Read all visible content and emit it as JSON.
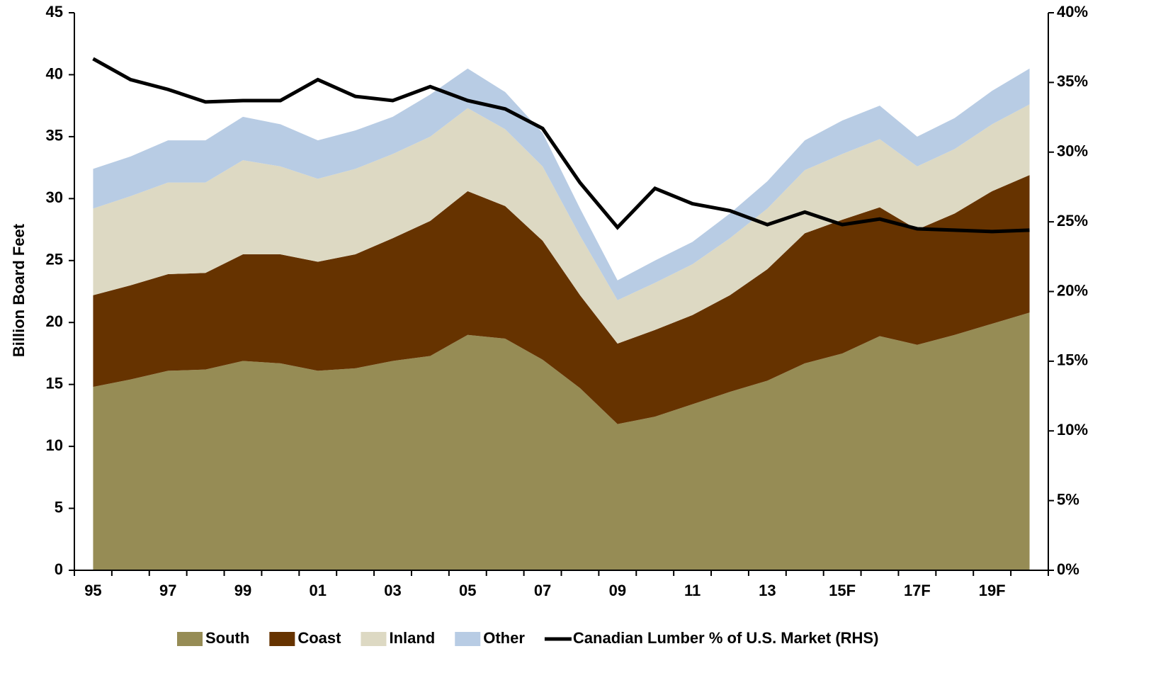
{
  "chart_data": {
    "type": "area",
    "y_label": "Billion Board Feet",
    "categories": [
      "95",
      null,
      "97",
      null,
      "99",
      null,
      "01",
      null,
      "03",
      null,
      "05",
      null,
      "07",
      null,
      "09",
      null,
      "11",
      null,
      "13",
      null,
      "15F",
      null,
      "17F",
      null,
      "19F",
      null
    ],
    "series": [
      {
        "name": "South",
        "color": "#968c55",
        "values": [
          14.8,
          15.4,
          16.1,
          16.2,
          16.9,
          16.7,
          16.1,
          16.3,
          16.9,
          17.3,
          19.0,
          18.7,
          17.0,
          14.7,
          11.8,
          12.4,
          13.4,
          14.4,
          15.3,
          16.7,
          17.5,
          18.9,
          18.2,
          19.0,
          19.9,
          20.8
        ]
      },
      {
        "name": "Coast",
        "color": "#663300",
        "values": [
          7.4,
          7.6,
          7.8,
          7.8,
          8.6,
          8.8,
          8.8,
          9.2,
          9.9,
          10.9,
          11.6,
          10.7,
          9.6,
          7.5,
          6.5,
          7.0,
          7.2,
          7.8,
          9.0,
          10.5,
          10.8,
          10.4,
          9.3,
          9.8,
          10.7,
          11.1
        ]
      },
      {
        "name": "Inland",
        "color": "#ddd9c3",
        "values": [
          7.0,
          7.2,
          7.4,
          7.3,
          7.6,
          7.1,
          6.7,
          6.9,
          6.8,
          6.8,
          6.7,
          6.2,
          6.0,
          4.8,
          3.5,
          3.8,
          4.1,
          4.6,
          4.9,
          5.1,
          5.3,
          5.5,
          5.1,
          5.2,
          5.4,
          5.7
        ]
      },
      {
        "name": "Other",
        "color": "#b8cce4",
        "values": [
          3.2,
          3.2,
          3.4,
          3.4,
          3.5,
          3.4,
          3.1,
          3.1,
          3.0,
          3.4,
          3.2,
          3.0,
          2.7,
          2.2,
          1.6,
          1.8,
          1.8,
          2.0,
          2.2,
          2.4,
          2.7,
          2.7,
          2.4,
          2.5,
          2.7,
          2.9
        ]
      },
      {
        "name": "Canadian Lumber % of U.S. Market (RHS)",
        "type": "line",
        "axis": "y2",
        "color": "#000000",
        "values": [
          36.7,
          35.2,
          34.5,
          33.6,
          33.7,
          33.7,
          35.2,
          34.0,
          33.7,
          34.7,
          33.7,
          33.1,
          31.7,
          27.8,
          24.6,
          27.4,
          26.3,
          25.8,
          24.8,
          25.7,
          24.8,
          25.2,
          24.5,
          24.4,
          24.3,
          24.4
        ]
      }
    ],
    "ylim": [
      0,
      45
    ],
    "yticks": [
      0,
      5,
      10,
      15,
      20,
      25,
      30,
      35,
      40,
      45
    ],
    "y2lim": [
      0,
      40
    ],
    "y2ticks": [
      {
        "value": 0,
        "label": "0%"
      },
      {
        "value": 5,
        "label": "5%"
      },
      {
        "value": 10,
        "label": "10%"
      },
      {
        "value": 15,
        "label": "15%"
      },
      {
        "value": 20,
        "label": "20%"
      },
      {
        "value": 25,
        "label": "25%"
      },
      {
        "value": 30,
        "label": "30%"
      },
      {
        "value": 35,
        "label": "35%"
      },
      {
        "value": 40,
        "label": "40%"
      }
    ],
    "legend": "bottom"
  }
}
